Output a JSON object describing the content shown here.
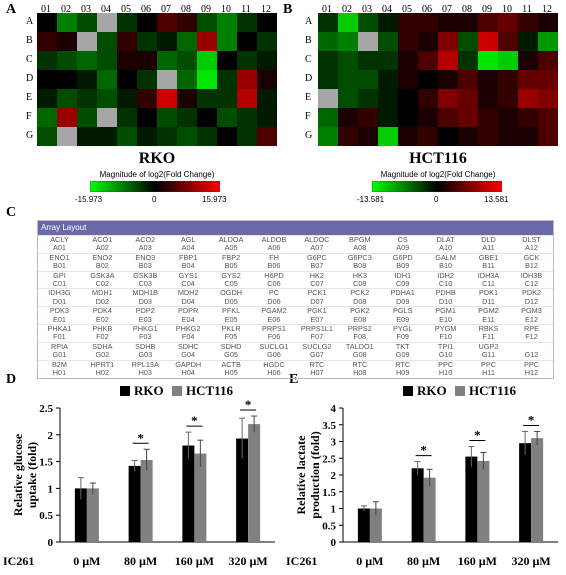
{
  "panels": {
    "a": "A",
    "b": "B",
    "c": "C",
    "d": "D",
    "e": "E"
  },
  "heatmap": {
    "columns": [
      "01",
      "02",
      "03",
      "04",
      "05",
      "06",
      "07",
      "08",
      "09",
      "10",
      "11",
      "12"
    ],
    "rows": [
      "A",
      "B",
      "C",
      "D",
      "E",
      "F",
      "G"
    ]
  },
  "colorbar_title": "Magnitude of log2(Fold Change)",
  "chart_data": [
    {
      "type": "heatmap",
      "title": "RKO",
      "colorbar_title": "Magnitude of log2(Fold Change)",
      "colorbar_ticks": [
        "-15.973",
        "0",
        "15.973"
      ],
      "vmin": -15.973,
      "vmax": 15.973,
      "rows": [
        "A",
        "B",
        "C",
        "D",
        "E",
        "F",
        "G"
      ],
      "columns": [
        "01",
        "02",
        "03",
        "04",
        "05",
        "06",
        "07",
        "08",
        "09",
        "10",
        "11",
        "12"
      ],
      "values": [
        [
          0.0,
          -2.5,
          -1.5,
          null,
          -1.0,
          0.0,
          1.5,
          1.0,
          -1.5,
          -2.5,
          -1.0,
          0.0
        ],
        [
          1.0,
          0.5,
          null,
          -1.5,
          1.0,
          -1.0,
          -0.5,
          -2.0,
          3.0,
          -2.5,
          0.0,
          -1.0
        ],
        [
          -1.0,
          -1.5,
          -2.0,
          -1.5,
          0.5,
          0.5,
          -2.0,
          -1.5,
          -4.0,
          0.0,
          -1.0,
          -0.5
        ],
        [
          0.0,
          0.0,
          -0.5,
          -2.0,
          0.0,
          -1.0,
          null,
          -2.0,
          -4.5,
          -1.0,
          3.0,
          0.5
        ],
        [
          -0.5,
          -1.5,
          -1.0,
          -1.5,
          -0.5,
          1.0,
          4.0,
          0.5,
          -1.0,
          -1.0,
          3.5,
          -0.5
        ],
        [
          -2.0,
          3.0,
          -1.5,
          null,
          -1.0,
          0.0,
          -1.5,
          -1.0,
          0.0,
          -1.5,
          -1.0,
          -0.5
        ],
        [
          -1.5,
          null,
          -0.5,
          -0.5,
          -1.5,
          -0.5,
          -1.0,
          -1.5,
          -1.0,
          0.0,
          -1.0,
          1.5
        ]
      ]
    },
    {
      "type": "heatmap",
      "title": "HCT116",
      "colorbar_title": "Magnitude of log2(Fold Change)",
      "colorbar_ticks": [
        "-13.581",
        "0",
        "13.581"
      ],
      "vmin": -13.581,
      "vmax": 13.581,
      "rows": [
        "A",
        "B",
        "C",
        "D",
        "E",
        "F",
        "G"
      ],
      "columns": [
        "01",
        "02",
        "03",
        "04",
        "05",
        "06",
        "07",
        "08",
        "09",
        "10",
        "11",
        "12"
      ],
      "values": [
        [
          -1.0,
          -4.0,
          -1.5,
          -0.5,
          1.0,
          1.0,
          0.5,
          0.5,
          1.5,
          2.0,
          1.0,
          0.5
        ],
        [
          -2.0,
          -2.5,
          null,
          -1.5,
          1.0,
          0.5,
          2.5,
          -1.5,
          4.0,
          1.5,
          -0.5,
          -3.0
        ],
        [
          -1.0,
          -1.5,
          -1.0,
          -1.0,
          0.5,
          1.5,
          3.5,
          -1.0,
          -4.5,
          -4.0,
          0.5,
          1.5
        ],
        [
          -1.0,
          -1.5,
          -1.5,
          -0.5,
          0.5,
          0.0,
          0.5,
          1.5,
          0.5,
          1.0,
          2.0,
          2.0
        ],
        [
          null,
          -1.5,
          -1.0,
          -0.5,
          0.0,
          1.0,
          2.5,
          2.0,
          0.5,
          1.0,
          3.0,
          2.5
        ],
        [
          -2.0,
          0.5,
          1.0,
          -0.5,
          0.0,
          0.5,
          1.5,
          2.0,
          1.0,
          0.5,
          1.0,
          1.5
        ],
        [
          -2.5,
          1.0,
          0.5,
          -4.0,
          0.5,
          1.0,
          0.0,
          0.5,
          1.0,
          0.5,
          0.5,
          1.5
        ]
      ]
    },
    {
      "type": "table",
      "title": "Array Layout",
      "rows": [
        {
          "genes": [
            "ACLY",
            "ACO1",
            "ACO2",
            "AGL",
            "ALDOA",
            "ALDOB",
            "ALDOC",
            "BPGM",
            "CS",
            "DLAT",
            "DLD",
            "DLST"
          ],
          "wells": [
            "A01",
            "A02",
            "A03",
            "A04",
            "A05",
            "A06",
            "A07",
            "A08",
            "A09",
            "A10",
            "A11",
            "A12"
          ]
        },
        {
          "genes": [
            "ENO1",
            "ENO2",
            "ENO3",
            "FBP1",
            "FBP2",
            "FH",
            "G6PC",
            "G6PC3",
            "G6PD",
            "GALM",
            "GBE1",
            "GCK"
          ],
          "wells": [
            "B01",
            "B02",
            "B03",
            "B04",
            "B05",
            "B06",
            "B07",
            "B08",
            "B09",
            "B10",
            "B11",
            "B12"
          ]
        },
        {
          "genes": [
            "GPI",
            "GSK3A",
            "GSK3B",
            "GYS1",
            "GYS2",
            "H6PD",
            "HK2",
            "HK3",
            "IDH1",
            "IDH2",
            "IDH3A",
            "IDH3B"
          ],
          "wells": [
            "C01",
            "C02",
            "C03",
            "C04",
            "C05",
            "C06",
            "C07",
            "C08",
            "C09",
            "C10",
            "C11",
            "C12"
          ]
        },
        {
          "genes": [
            "IDH3G",
            "MDH1",
            "MDH1B",
            "MDH2",
            "OGDH",
            "PC",
            "PCK1",
            "PCK2",
            "PDHA1",
            "PDHB",
            "PDK1",
            "PDK2"
          ],
          "wells": [
            "D01",
            "D02",
            "D03",
            "D04",
            "D05",
            "D06",
            "D07",
            "D08",
            "D09",
            "D10",
            "D11",
            "D12"
          ]
        },
        {
          "genes": [
            "PDK3",
            "PDK4",
            "PDP2",
            "PDPR",
            "PFKL",
            "PGAM2",
            "PGK1",
            "PGK2",
            "PGLS",
            "PGM1",
            "PGM2",
            "PGM3"
          ],
          "wells": [
            "E01",
            "E02",
            "E03",
            "E04",
            "E05",
            "E06",
            "E07",
            "E08",
            "E09",
            "E10",
            "E11",
            "E12"
          ]
        },
        {
          "genes": [
            "PHKA1",
            "PHKB",
            "PHKG1",
            "PHKG2",
            "PKLR",
            "PRPS1",
            "PRPS1L1",
            "PRPS2",
            "PYGL",
            "PYGM",
            "RBKS",
            "RPE"
          ],
          "wells": [
            "F01",
            "F02",
            "F03",
            "F04",
            "F05",
            "F06",
            "F07",
            "F08",
            "F09",
            "F10",
            "F11",
            "F12"
          ]
        },
        {
          "genes": [
            "RPIA",
            "SDHA",
            "SDHB",
            "SDHC",
            "SDHD",
            "SUCLG1",
            "SUCLG2",
            "TALDO1",
            "TKT",
            "TPI1",
            "UGP2",
            ""
          ],
          "wells": [
            "G01",
            "G02",
            "G03",
            "G04",
            "G05",
            "G06",
            "G07",
            "G08",
            "G09",
            "G10",
            "G11",
            "G12"
          ]
        },
        {
          "genes": [
            "B2M",
            "HPRT1",
            "RPL13A",
            "GAPDH",
            "ACTB",
            "HGDC",
            "RTC",
            "RTC",
            "RTC",
            "PPC",
            "PPC",
            "PPC"
          ],
          "wells": [
            "H01",
            "H02",
            "H03",
            "H04",
            "H05",
            "H06",
            "H07",
            "H08",
            "H09",
            "H10",
            "H11",
            "H12"
          ]
        }
      ]
    },
    {
      "type": "bar",
      "ylabel": "Relative glucose uptake (fold)",
      "treatment_label": "IC261",
      "categories": [
        "0 µM",
        "80 µM",
        "160 µM",
        "320 µM"
      ],
      "ylim": [
        0,
        2.5
      ],
      "yticks": [
        "0",
        "0.5",
        "1",
        "1.5",
        "2",
        "2.5"
      ],
      "series": [
        {
          "name": "RKO",
          "color": "#000000",
          "values": [
            1.0,
            1.42,
            1.8,
            1.93
          ],
          "errors": [
            0.2,
            0.1,
            0.25,
            0.38
          ]
        },
        {
          "name": "HCT116",
          "color": "#808080",
          "values": [
            1.0,
            1.53,
            1.65,
            2.2
          ],
          "errors": [
            0.1,
            0.2,
            0.25,
            0.15
          ]
        }
      ],
      "significance": [
        "",
        "*",
        "*",
        "*"
      ]
    },
    {
      "type": "bar",
      "ylabel": "Relative lactate production (fold)",
      "treatment_label": "IC261",
      "categories": [
        "0 µM",
        "80 µM",
        "160 µM",
        "320 µM"
      ],
      "ylim": [
        0,
        4
      ],
      "yticks": [
        "0",
        "0.5",
        "1",
        "1.5",
        "2",
        "2.5",
        "3",
        "3.5",
        "4"
      ],
      "series": [
        {
          "name": "RKO",
          "color": "#000000",
          "values": [
            1.0,
            2.2,
            2.55,
            2.95
          ],
          "errors": [
            0.08,
            0.2,
            0.3,
            0.35
          ]
        },
        {
          "name": "HCT116",
          "color": "#808080",
          "values": [
            1.0,
            1.92,
            2.42,
            3.1
          ],
          "errors": [
            0.2,
            0.25,
            0.25,
            0.2
          ]
        }
      ],
      "significance": [
        "",
        "*",
        "*",
        "*"
      ]
    }
  ]
}
